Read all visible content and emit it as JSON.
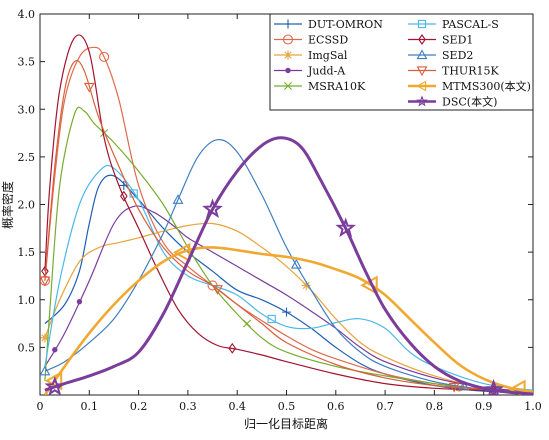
{
  "chart_data": {
    "type": "line",
    "title": "",
    "xlabel": "归一化目标距离",
    "ylabel": "概率密度",
    "xlim": [
      0,
      1.0
    ],
    "ylim": [
      0,
      4.0
    ],
    "xticks": [
      "0",
      "0.1",
      "0.2",
      "0.3",
      "0.4",
      "0.5",
      "0.6",
      "0.7",
      "0.8",
      "0.9",
      "1.0"
    ],
    "yticks": [
      "0.5",
      "1.0",
      "1.5",
      "2.0",
      "2.5",
      "3.0",
      "3.5",
      "4.0"
    ],
    "grid": false,
    "legend_position": "top-right",
    "series": [
      {
        "name": "DUT-OMRON",
        "color": "#1f5fb4",
        "marker": "plus",
        "width": 1.2,
        "points": [
          [
            0.01,
            0.75
          ],
          [
            0.05,
            0.95
          ],
          [
            0.08,
            1.3
          ],
          [
            0.1,
            1.8
          ],
          [
            0.12,
            2.2
          ],
          [
            0.15,
            2.3
          ],
          [
            0.2,
            2.05
          ],
          [
            0.25,
            1.75
          ],
          [
            0.3,
            1.5
          ],
          [
            0.35,
            1.3
          ],
          [
            0.4,
            1.1
          ],
          [
            0.45,
            1.0
          ],
          [
            0.5,
            0.87
          ],
          [
            0.55,
            0.7
          ],
          [
            0.6,
            0.5
          ],
          [
            0.65,
            0.33
          ],
          [
            0.7,
            0.22
          ],
          [
            0.8,
            0.1
          ],
          [
            0.9,
            0.04
          ],
          [
            1.0,
            0.02
          ]
        ],
        "markers": [
          0.17,
          0.5
        ]
      },
      {
        "name": "ECSSD",
        "color": "#e06a4e",
        "marker": "circle",
        "width": 1.2,
        "points": [
          [
            0.01,
            1.2
          ],
          [
            0.03,
            2.3
          ],
          [
            0.05,
            3.1
          ],
          [
            0.08,
            3.55
          ],
          [
            0.11,
            3.65
          ],
          [
            0.13,
            3.55
          ],
          [
            0.16,
            3.1
          ],
          [
            0.2,
            2.2
          ],
          [
            0.25,
            1.6
          ],
          [
            0.3,
            1.35
          ],
          [
            0.35,
            1.15
          ],
          [
            0.4,
            0.95
          ],
          [
            0.45,
            0.78
          ],
          [
            0.5,
            0.62
          ],
          [
            0.55,
            0.48
          ],
          [
            0.6,
            0.38
          ],
          [
            0.7,
            0.22
          ],
          [
            0.8,
            0.12
          ],
          [
            0.9,
            0.06
          ],
          [
            1.0,
            0.03
          ]
        ],
        "markers": [
          0.01,
          0.13,
          0.35,
          0.85
        ]
      },
      {
        "name": "ImgSal",
        "color": "#e8a33c",
        "marker": "star",
        "width": 1.2,
        "points": [
          [
            0.01,
            0.6
          ],
          [
            0.04,
            1.0
          ],
          [
            0.08,
            1.4
          ],
          [
            0.12,
            1.55
          ],
          [
            0.16,
            1.6
          ],
          [
            0.2,
            1.65
          ],
          [
            0.25,
            1.72
          ],
          [
            0.3,
            1.78
          ],
          [
            0.35,
            1.8
          ],
          [
            0.4,
            1.72
          ],
          [
            0.45,
            1.55
          ],
          [
            0.5,
            1.35
          ],
          [
            0.55,
            1.1
          ],
          [
            0.6,
            0.8
          ],
          [
            0.65,
            0.55
          ],
          [
            0.7,
            0.4
          ],
          [
            0.8,
            0.2
          ],
          [
            0.9,
            0.08
          ],
          [
            1.0,
            0.04
          ]
        ],
        "markers": [
          0.01,
          0.54
        ]
      },
      {
        "name": "Judd-A",
        "color": "#7b3d9b",
        "marker": "dot",
        "width": 1.2,
        "points": [
          [
            0.01,
            0.3
          ],
          [
            0.05,
            0.65
          ],
          [
            0.1,
            1.2
          ],
          [
            0.15,
            1.8
          ],
          [
            0.19,
            1.98
          ],
          [
            0.23,
            1.92
          ],
          [
            0.27,
            1.78
          ],
          [
            0.3,
            1.65
          ],
          [
            0.35,
            1.5
          ],
          [
            0.4,
            1.35
          ],
          [
            0.45,
            1.2
          ],
          [
            0.5,
            1.05
          ],
          [
            0.55,
            0.88
          ],
          [
            0.6,
            0.7
          ],
          [
            0.65,
            0.5
          ],
          [
            0.7,
            0.35
          ],
          [
            0.8,
            0.18
          ],
          [
            0.9,
            0.08
          ],
          [
            1.0,
            0.03
          ]
        ],
        "markers": [
          0.03,
          0.08
        ]
      },
      {
        "name": "MSRA10K",
        "color": "#77ac30",
        "marker": "x",
        "width": 1.2,
        "points": [
          [
            0.01,
            0.15
          ],
          [
            0.02,
            0.9
          ],
          [
            0.04,
            2.2
          ],
          [
            0.07,
            2.95
          ],
          [
            0.09,
            2.98
          ],
          [
            0.11,
            2.85
          ],
          [
            0.15,
            2.65
          ],
          [
            0.2,
            2.35
          ],
          [
            0.25,
            2.0
          ],
          [
            0.3,
            1.55
          ],
          [
            0.35,
            1.15
          ],
          [
            0.4,
            0.85
          ],
          [
            0.45,
            0.6
          ],
          [
            0.5,
            0.45
          ],
          [
            0.6,
            0.3
          ],
          [
            0.7,
            0.2
          ],
          [
            0.8,
            0.12
          ],
          [
            0.9,
            0.06
          ],
          [
            1.0,
            0.03
          ]
        ],
        "markers": [
          0.13,
          0.42
        ]
      },
      {
        "name": "PASCAL-S",
        "color": "#4db8e8",
        "marker": "square",
        "width": 1.2,
        "points": [
          [
            0.01,
            0.3
          ],
          [
            0.04,
            1.2
          ],
          [
            0.08,
            2.0
          ],
          [
            0.12,
            2.35
          ],
          [
            0.15,
            2.38
          ],
          [
            0.2,
            2.05
          ],
          [
            0.25,
            1.5
          ],
          [
            0.3,
            1.25
          ],
          [
            0.35,
            1.15
          ],
          [
            0.4,
            1.05
          ],
          [
            0.45,
            0.85
          ],
          [
            0.5,
            0.72
          ],
          [
            0.55,
            0.7
          ],
          [
            0.6,
            0.76
          ],
          [
            0.65,
            0.8
          ],
          [
            0.7,
            0.7
          ],
          [
            0.75,
            0.45
          ],
          [
            0.8,
            0.3
          ],
          [
            0.9,
            0.12
          ],
          [
            1.0,
            0.05
          ]
        ],
        "markers": [
          0.19,
          0.47
        ]
      },
      {
        "name": "SED1",
        "color": "#a2142f",
        "marker": "diamond",
        "width": 1.2,
        "points": [
          [
            0.01,
            1.3
          ],
          [
            0.02,
            2.2
          ],
          [
            0.04,
            3.2
          ],
          [
            0.07,
            3.75
          ],
          [
            0.1,
            3.6
          ],
          [
            0.13,
            2.7
          ],
          [
            0.16,
            2.2
          ],
          [
            0.2,
            1.75
          ],
          [
            0.24,
            1.3
          ],
          [
            0.28,
            0.9
          ],
          [
            0.32,
            0.65
          ],
          [
            0.36,
            0.52
          ],
          [
            0.4,
            0.48
          ],
          [
            0.45,
            0.42
          ],
          [
            0.5,
            0.35
          ],
          [
            0.6,
            0.22
          ],
          [
            0.7,
            0.12
          ],
          [
            0.8,
            0.07
          ],
          [
            0.9,
            0.05
          ],
          [
            1.0,
            0.02
          ]
        ],
        "markers": [
          0.01,
          0.17,
          0.39,
          0.92
        ]
      },
      {
        "name": "SED2",
        "color": "#3e7fc1",
        "marker": "triangle",
        "width": 1.2,
        "points": [
          [
            0.01,
            0.25
          ],
          [
            0.05,
            0.35
          ],
          [
            0.1,
            0.55
          ],
          [
            0.15,
            0.8
          ],
          [
            0.2,
            1.2
          ],
          [
            0.25,
            1.7
          ],
          [
            0.28,
            2.05
          ],
          [
            0.32,
            2.5
          ],
          [
            0.36,
            2.68
          ],
          [
            0.4,
            2.55
          ],
          [
            0.45,
            2.1
          ],
          [
            0.5,
            1.55
          ],
          [
            0.55,
            1.1
          ],
          [
            0.6,
            0.7
          ],
          [
            0.65,
            0.45
          ],
          [
            0.7,
            0.3
          ],
          [
            0.8,
            0.14
          ],
          [
            0.9,
            0.06
          ],
          [
            1.0,
            0.03
          ]
        ],
        "markers": [
          0.01,
          0.28,
          0.52,
          0.86
        ]
      },
      {
        "name": "THUR15K",
        "color": "#d95f3b",
        "marker": "triangle-down",
        "width": 1.2,
        "points": [
          [
            0.01,
            1.2
          ],
          [
            0.03,
            2.4
          ],
          [
            0.05,
            3.2
          ],
          [
            0.07,
            3.5
          ],
          [
            0.09,
            3.4
          ],
          [
            0.12,
            2.9
          ],
          [
            0.16,
            2.4
          ],
          [
            0.2,
            1.95
          ],
          [
            0.25,
            1.55
          ],
          [
            0.3,
            1.3
          ],
          [
            0.35,
            1.15
          ],
          [
            0.4,
            0.95
          ],
          [
            0.45,
            0.75
          ],
          [
            0.5,
            0.55
          ],
          [
            0.6,
            0.32
          ],
          [
            0.7,
            0.18
          ],
          [
            0.8,
            0.1
          ],
          [
            0.9,
            0.06
          ],
          [
            1.0,
            0.02
          ]
        ],
        "markers": [
          0.01,
          0.1,
          0.36,
          0.84
        ]
      },
      {
        "name": "MTMS300(本文)",
        "color": "#f0a830",
        "marker": "triangle-left",
        "width": 2.6,
        "points": [
          [
            0.01,
            0.0
          ],
          [
            0.05,
            0.3
          ],
          [
            0.1,
            0.65
          ],
          [
            0.15,
            0.95
          ],
          [
            0.2,
            1.2
          ],
          [
            0.25,
            1.4
          ],
          [
            0.3,
            1.52
          ],
          [
            0.35,
            1.55
          ],
          [
            0.4,
            1.52
          ],
          [
            0.45,
            1.48
          ],
          [
            0.5,
            1.45
          ],
          [
            0.55,
            1.4
          ],
          [
            0.6,
            1.32
          ],
          [
            0.65,
            1.22
          ],
          [
            0.7,
            1.05
          ],
          [
            0.75,
            0.8
          ],
          [
            0.8,
            0.55
          ],
          [
            0.85,
            0.32
          ],
          [
            0.9,
            0.17
          ],
          [
            0.95,
            0.08
          ],
          [
            1.0,
            0.03
          ]
        ],
        "markers": [
          0.03,
          0.29,
          0.67,
          0.97
        ]
      },
      {
        "name": "DSC(本文)",
        "color": "#7b3d9b",
        "marker": "star5",
        "width": 3.0,
        "points": [
          [
            0.01,
            0.05
          ],
          [
            0.05,
            0.12
          ],
          [
            0.1,
            0.2
          ],
          [
            0.15,
            0.3
          ],
          [
            0.2,
            0.45
          ],
          [
            0.25,
            0.85
          ],
          [
            0.3,
            1.4
          ],
          [
            0.35,
            1.95
          ],
          [
            0.4,
            2.35
          ],
          [
            0.45,
            2.62
          ],
          [
            0.49,
            2.7
          ],
          [
            0.53,
            2.6
          ],
          [
            0.57,
            2.25
          ],
          [
            0.62,
            1.75
          ],
          [
            0.66,
            1.3
          ],
          [
            0.7,
            0.9
          ],
          [
            0.75,
            0.55
          ],
          [
            0.8,
            0.3
          ],
          [
            0.85,
            0.15
          ],
          [
            0.9,
            0.07
          ],
          [
            0.95,
            0.03
          ],
          [
            1.0,
            0.01
          ]
        ],
        "markers": [
          0.03,
          0.35,
          0.62,
          0.92
        ]
      }
    ]
  }
}
